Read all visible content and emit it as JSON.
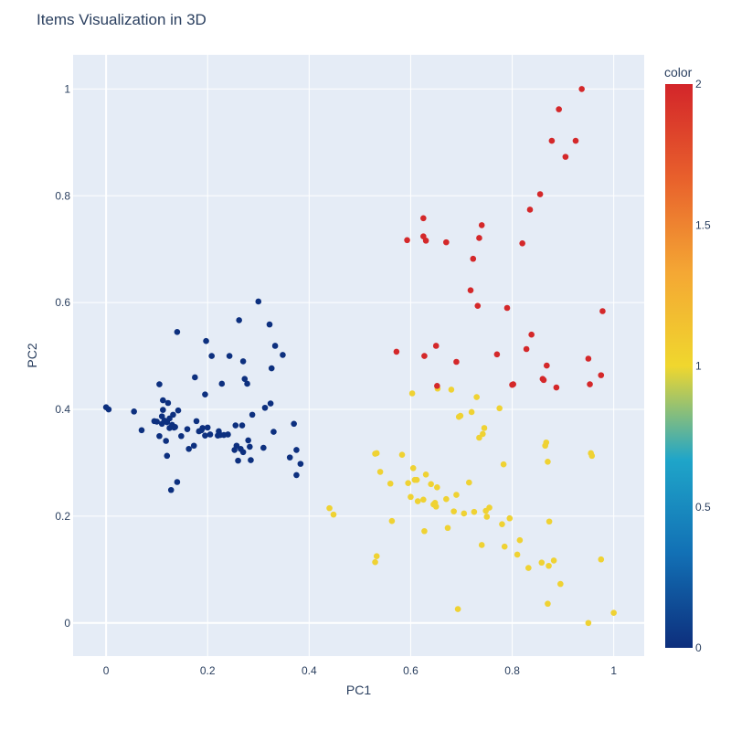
{
  "chart_data": {
    "type": "scatter",
    "title": "Items Visualization in 3D",
    "xlabel": "PC1",
    "ylabel": "PC2",
    "xlim": [
      -0.065,
      1.06
    ],
    "ylim": [
      -0.062,
      1.064
    ],
    "xticks": [
      0,
      0.2,
      0.4,
      0.6,
      0.8,
      1
    ],
    "xtick_labels": [
      "0",
      "0.2",
      "0.4",
      "0.6",
      "0.8",
      "1"
    ],
    "yticks": [
      0,
      0.2,
      0.4,
      0.6,
      0.8,
      1
    ],
    "ytick_labels": [
      "0",
      "0.2",
      "0.4",
      "0.6",
      "0.8",
      "1"
    ],
    "grid": true,
    "plot_background": "#e5ecf6",
    "colorbar": {
      "title": "color",
      "range": [
        0,
        2
      ],
      "ticks": [
        0,
        0.5,
        1,
        1.5,
        2
      ],
      "tick_labels": [
        "0",
        "0.5",
        "1",
        "1.5",
        "2"
      ],
      "colorscale": [
        "#0d2e7c",
        "#1270b5",
        "#1fa5c9",
        "#f0d72e",
        "#f4a734",
        "#e8602c",
        "#d3252a"
      ]
    },
    "series": [
      {
        "color_value": 0,
        "color": "#0d307f",
        "points": [
          [
            0.0,
            0.404
          ],
          [
            0.005,
            0.4
          ],
          [
            0.055,
            0.396
          ],
          [
            0.07,
            0.361
          ],
          [
            0.095,
            0.378
          ],
          [
            0.1,
            0.377
          ],
          [
            0.105,
            0.35
          ],
          [
            0.105,
            0.447
          ],
          [
            0.11,
            0.387
          ],
          [
            0.11,
            0.373
          ],
          [
            0.112,
            0.399
          ],
          [
            0.112,
            0.417
          ],
          [
            0.115,
            0.379
          ],
          [
            0.118,
            0.341
          ],
          [
            0.12,
            0.313
          ],
          [
            0.12,
            0.376
          ],
          [
            0.122,
            0.412
          ],
          [
            0.125,
            0.365
          ],
          [
            0.125,
            0.383
          ],
          [
            0.128,
            0.249
          ],
          [
            0.13,
            0.371
          ],
          [
            0.132,
            0.39
          ],
          [
            0.134,
            0.366
          ],
          [
            0.136,
            0.367
          ],
          [
            0.14,
            0.264
          ],
          [
            0.14,
            0.545
          ],
          [
            0.142,
            0.398
          ],
          [
            0.148,
            0.35
          ],
          [
            0.16,
            0.363
          ],
          [
            0.163,
            0.326
          ],
          [
            0.173,
            0.332
          ],
          [
            0.175,
            0.46
          ],
          [
            0.178,
            0.378
          ],
          [
            0.183,
            0.359
          ],
          [
            0.188,
            0.361
          ],
          [
            0.19,
            0.365
          ],
          [
            0.195,
            0.351
          ],
          [
            0.195,
            0.428
          ],
          [
            0.197,
            0.528
          ],
          [
            0.2,
            0.366
          ],
          [
            0.205,
            0.353
          ],
          [
            0.208,
            0.5
          ],
          [
            0.22,
            0.351
          ],
          [
            0.222,
            0.359
          ],
          [
            0.225,
            0.352
          ],
          [
            0.228,
            0.448
          ],
          [
            0.232,
            0.352
          ],
          [
            0.24,
            0.353
          ],
          [
            0.243,
            0.5
          ],
          [
            0.253,
            0.324
          ],
          [
            0.255,
            0.37
          ],
          [
            0.257,
            0.332
          ],
          [
            0.26,
            0.304
          ],
          [
            0.262,
            0.567
          ],
          [
            0.265,
            0.326
          ],
          [
            0.268,
            0.37
          ],
          [
            0.27,
            0.32
          ],
          [
            0.27,
            0.49
          ],
          [
            0.273,
            0.457
          ],
          [
            0.278,
            0.448
          ],
          [
            0.28,
            0.342
          ],
          [
            0.283,
            0.33
          ],
          [
            0.285,
            0.305
          ],
          [
            0.288,
            0.39
          ],
          [
            0.3,
            0.602
          ],
          [
            0.31,
            0.328
          ],
          [
            0.313,
            0.403
          ],
          [
            0.322,
            0.559
          ],
          [
            0.324,
            0.411
          ],
          [
            0.326,
            0.477
          ],
          [
            0.33,
            0.358
          ],
          [
            0.333,
            0.519
          ],
          [
            0.348,
            0.502
          ],
          [
            0.362,
            0.31
          ],
          [
            0.37,
            0.373
          ],
          [
            0.375,
            0.277
          ],
          [
            0.375,
            0.324
          ],
          [
            0.383,
            0.298
          ]
        ]
      },
      {
        "color_value": 1,
        "color": "#efd233",
        "points": [
          [
            0.44,
            0.215
          ],
          [
            0.448,
            0.203
          ],
          [
            0.53,
            0.317
          ],
          [
            0.53,
            0.114
          ],
          [
            0.533,
            0.318
          ],
          [
            0.533,
            0.125
          ],
          [
            0.54,
            0.283
          ],
          [
            0.56,
            0.261
          ],
          [
            0.563,
            0.191
          ],
          [
            0.583,
            0.315
          ],
          [
            0.595,
            0.262
          ],
          [
            0.6,
            0.236
          ],
          [
            0.603,
            0.43
          ],
          [
            0.605,
            0.29
          ],
          [
            0.608,
            0.268
          ],
          [
            0.612,
            0.268
          ],
          [
            0.614,
            0.228
          ],
          [
            0.625,
            0.231
          ],
          [
            0.627,
            0.172
          ],
          [
            0.63,
            0.278
          ],
          [
            0.64,
            0.26
          ],
          [
            0.645,
            0.222
          ],
          [
            0.648,
            0.225
          ],
          [
            0.65,
            0.218
          ],
          [
            0.652,
            0.254
          ],
          [
            0.653,
            0.439
          ],
          [
            0.67,
            0.232
          ],
          [
            0.673,
            0.178
          ],
          [
            0.68,
            0.437
          ],
          [
            0.685,
            0.209
          ],
          [
            0.69,
            0.24
          ],
          [
            0.693,
            0.026
          ],
          [
            0.695,
            0.386
          ],
          [
            0.698,
            0.388
          ],
          [
            0.705,
            0.205
          ],
          [
            0.715,
            0.263
          ],
          [
            0.72,
            0.395
          ],
          [
            0.725,
            0.208
          ],
          [
            0.73,
            0.423
          ],
          [
            0.735,
            0.347
          ],
          [
            0.74,
            0.146
          ],
          [
            0.742,
            0.354
          ],
          [
            0.745,
            0.365
          ],
          [
            0.748,
            0.21
          ],
          [
            0.75,
            0.199
          ],
          [
            0.755,
            0.216
          ],
          [
            0.775,
            0.402
          ],
          [
            0.78,
            0.185
          ],
          [
            0.783,
            0.297
          ],
          [
            0.785,
            0.143
          ],
          [
            0.795,
            0.196
          ],
          [
            0.81,
            0.128
          ],
          [
            0.815,
            0.155
          ],
          [
            0.832,
            0.103
          ],
          [
            0.858,
            0.113
          ],
          [
            0.865,
            0.332
          ],
          [
            0.867,
            0.338
          ],
          [
            0.87,
            0.036
          ],
          [
            0.87,
            0.302
          ],
          [
            0.872,
            0.107
          ],
          [
            0.873,
            0.19
          ],
          [
            0.882,
            0.117
          ],
          [
            0.895,
            0.073
          ],
          [
            0.95,
            0.0
          ],
          [
            0.955,
            0.318
          ],
          [
            0.957,
            0.313
          ],
          [
            0.975,
            0.119
          ],
          [
            1.0,
            0.019
          ]
        ]
      },
      {
        "color_value": 2,
        "color": "#d4282a",
        "points": [
          [
            0.572,
            0.508
          ],
          [
            0.593,
            0.717
          ],
          [
            0.625,
            0.758
          ],
          [
            0.625,
            0.724
          ],
          [
            0.627,
            0.5
          ],
          [
            0.63,
            0.716
          ],
          [
            0.65,
            0.519
          ],
          [
            0.652,
            0.444
          ],
          [
            0.67,
            0.713
          ],
          [
            0.69,
            0.489
          ],
          [
            0.718,
            0.623
          ],
          [
            0.723,
            0.682
          ],
          [
            0.732,
            0.594
          ],
          [
            0.735,
            0.721
          ],
          [
            0.74,
            0.745
          ],
          [
            0.77,
            0.503
          ],
          [
            0.79,
            0.59
          ],
          [
            0.8,
            0.446
          ],
          [
            0.802,
            0.447
          ],
          [
            0.82,
            0.711
          ],
          [
            0.828,
            0.513
          ],
          [
            0.835,
            0.774
          ],
          [
            0.838,
            0.54
          ],
          [
            0.855,
            0.803
          ],
          [
            0.86,
            0.457
          ],
          [
            0.862,
            0.455
          ],
          [
            0.868,
            0.482
          ],
          [
            0.878,
            0.903
          ],
          [
            0.887,
            0.441
          ],
          [
            0.892,
            0.962
          ],
          [
            0.905,
            0.873
          ],
          [
            0.925,
            0.903
          ],
          [
            0.937,
            1.0
          ],
          [
            0.95,
            0.495
          ],
          [
            0.953,
            0.447
          ],
          [
            0.975,
            0.464
          ],
          [
            0.978,
            0.584
          ]
        ]
      }
    ]
  }
}
